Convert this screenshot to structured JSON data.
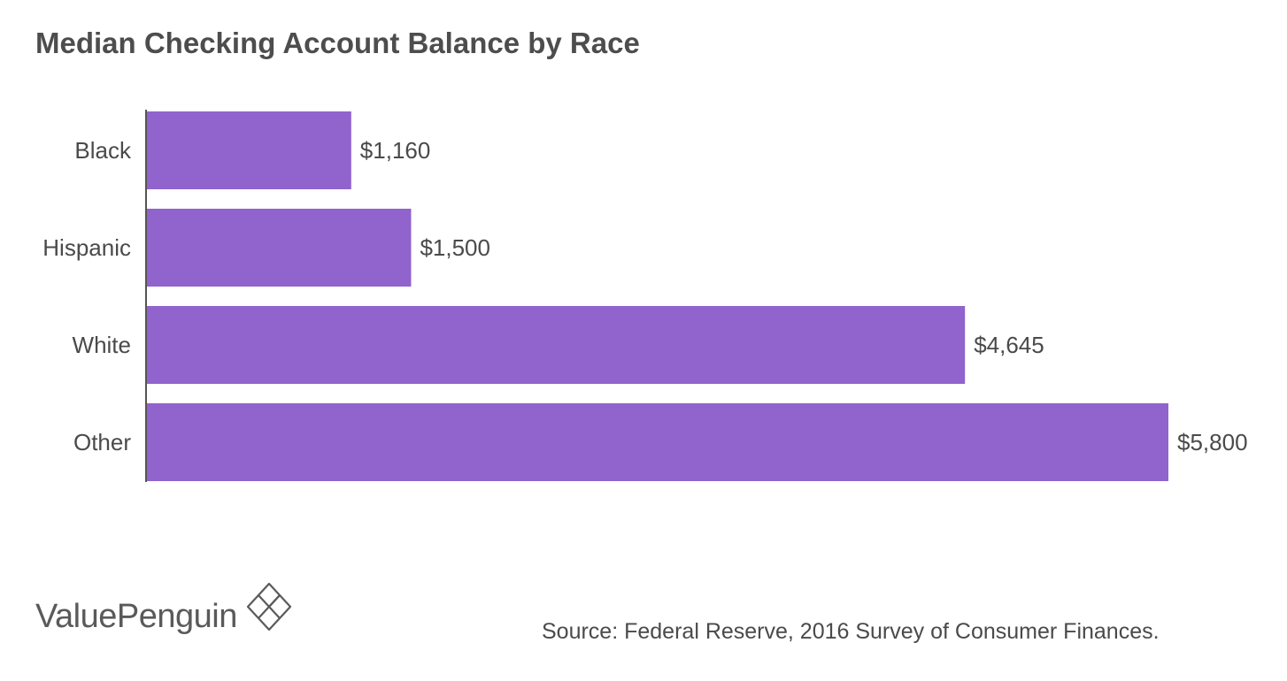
{
  "chart_data": {
    "type": "bar",
    "orientation": "horizontal",
    "title": "Median Checking Account Balance by Race",
    "categories": [
      "Black",
      "Hispanic",
      "White",
      "Other"
    ],
    "values": [
      1160,
      1500,
      4645,
      5800
    ],
    "value_labels": [
      "$1,160",
      "$1,500",
      "$4,645",
      "$5,800"
    ],
    "xlim": [
      0,
      5800
    ],
    "grid": false,
    "bar_color": "#9063cd",
    "xlabel": "",
    "ylabel": ""
  },
  "footer": {
    "brand": "ValuePenguin",
    "brand_icon": "diamond-logo-icon",
    "source": "Source: Federal Reserve, 2016 Survey of Consumer Finances."
  }
}
